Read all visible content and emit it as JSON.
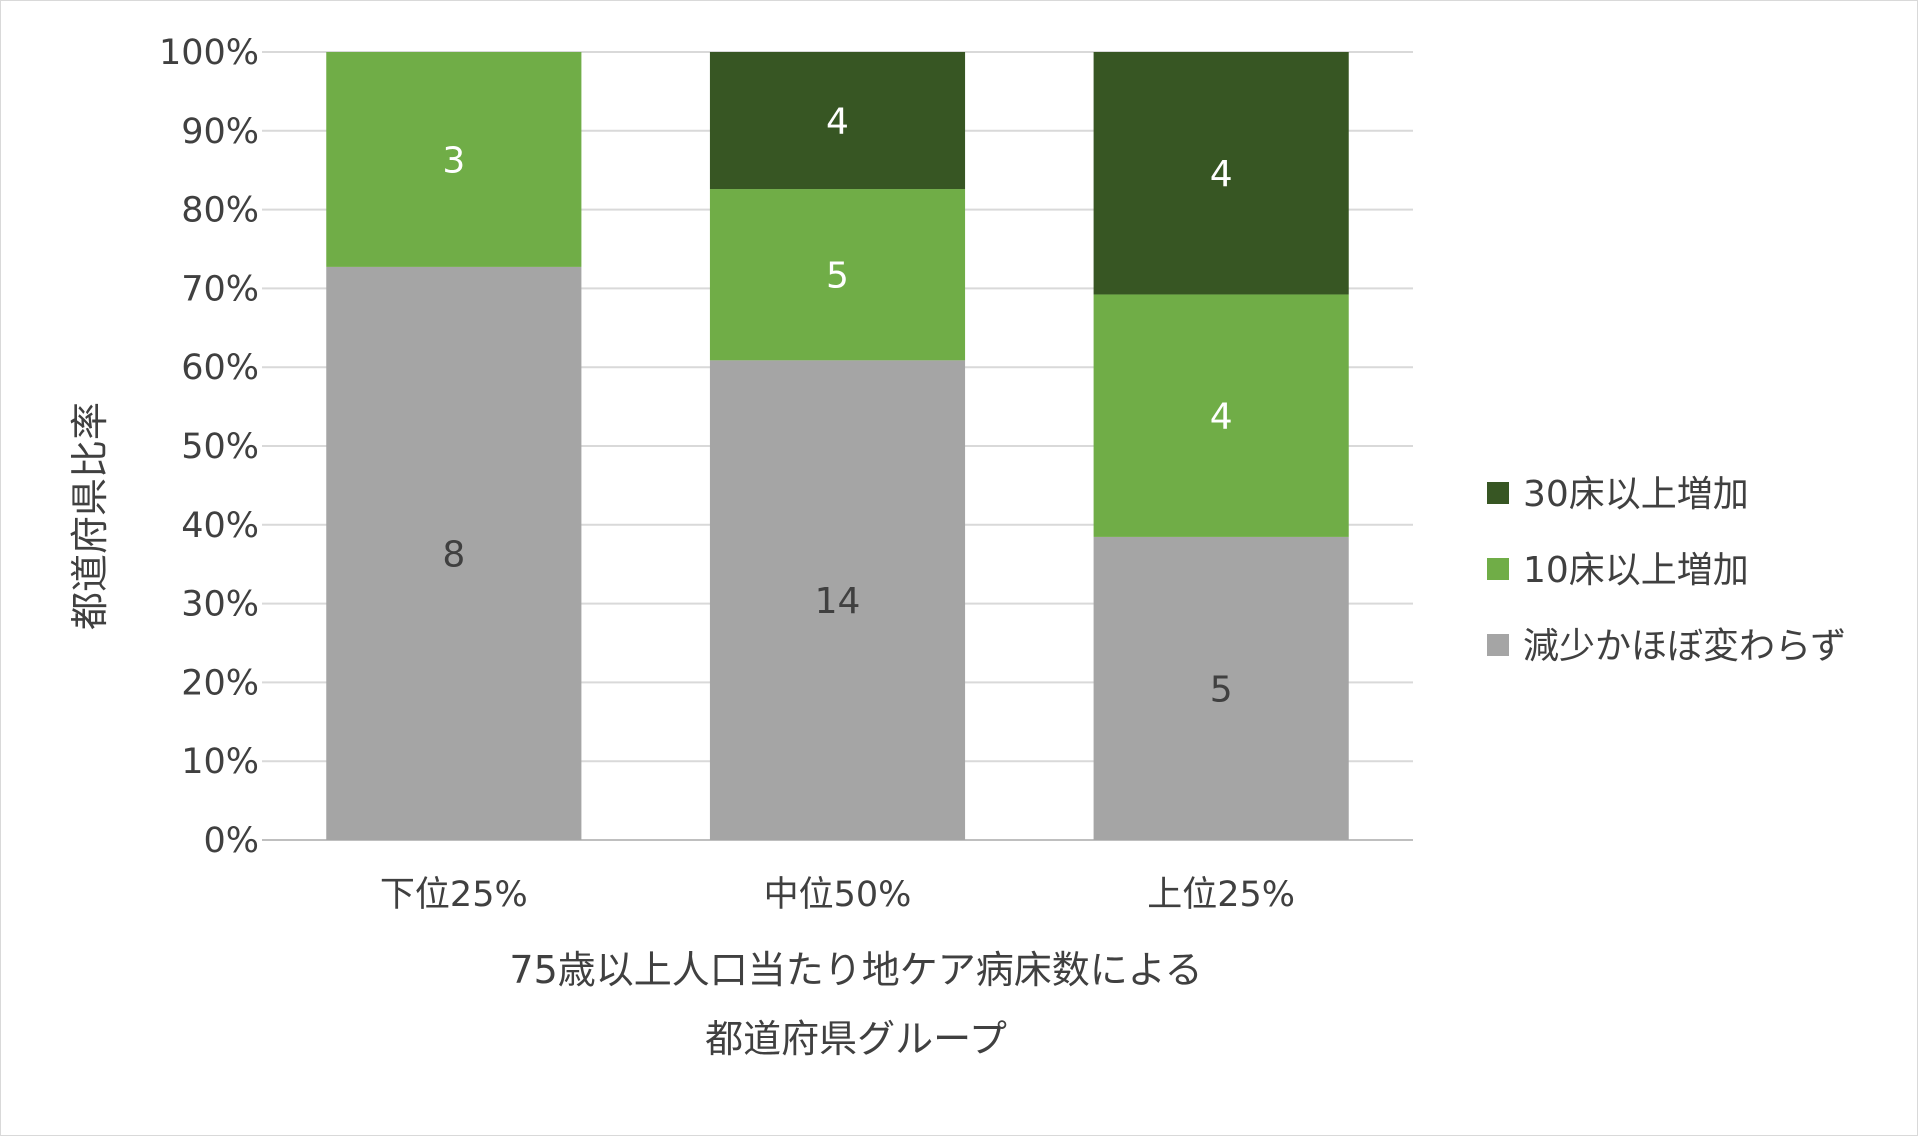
{
  "chart_data": {
    "type": "bar",
    "stacked": true,
    "normalized": true,
    "categories": [
      "下位25%",
      "中位50%",
      "上位25%"
    ],
    "series": [
      {
        "name": "減少かほぼ変わらず",
        "values": [
          8,
          14,
          5
        ],
        "color": "#a5a5a5",
        "label_color": "#404040"
      },
      {
        "name": "10床以上増加",
        "values": [
          3,
          5,
          4
        ],
        "color": "#70ad47",
        "label_color": "#ffffff"
      },
      {
        "name": "30床以上増加",
        "values": [
          0,
          4,
          4
        ],
        "color": "#375623",
        "label_color": "#ffffff"
      }
    ],
    "ylabel": "都道府県比率",
    "xlabel_lines": [
      "75歳以上人口当たり地ケア病床数による",
      "都道府県グループ"
    ],
    "ylim": [
      0,
      100
    ],
    "yticks": [
      "0%",
      "10%",
      "20%",
      "30%",
      "40%",
      "50%",
      "60%",
      "70%",
      "80%",
      "90%",
      "100%"
    ],
    "legend_order": [
      2,
      1,
      0
    ],
    "legend_position": "right",
    "grid": true
  }
}
